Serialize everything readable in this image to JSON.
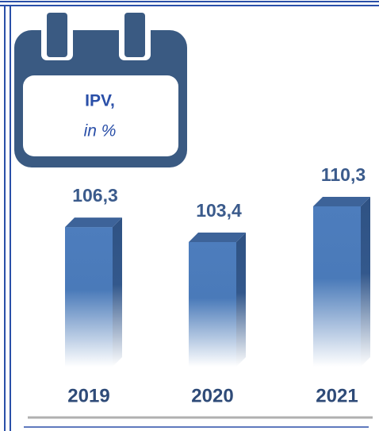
{
  "chart_data": {
    "type": "bar",
    "title": "IPV,",
    "subtitle": "in %",
    "categories": [
      "2019",
      "2020",
      "2021"
    ],
    "values": [
      106.3,
      103.4,
      110.3
    ],
    "value_labels": [
      "106,3",
      "103,4",
      "110,3"
    ],
    "color": "#4a7ab9"
  }
}
